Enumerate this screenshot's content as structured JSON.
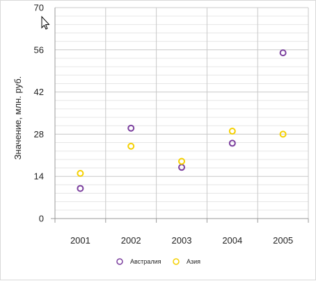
{
  "chart_data": {
    "type": "scatter",
    "title": "",
    "xlabel": "",
    "ylabel": "Значение, млн. руб.",
    "categories": [
      "2001",
      "2002",
      "2003",
      "2004",
      "2005"
    ],
    "ylim": [
      0,
      70
    ],
    "yticks": [
      "0",
      "14",
      "28",
      "42",
      "56",
      "70"
    ],
    "grid": true,
    "legend_position": "bottom-center",
    "series": [
      {
        "name": "Австралия",
        "values": [
          10,
          30,
          17,
          25,
          55
        ],
        "color": "#7b3f9e"
      },
      {
        "name": "Азия",
        "values": [
          15,
          24,
          19,
          29,
          28
        ],
        "color": "#f5d000"
      }
    ],
    "top_tick_color": "#e00000"
  },
  "icons": {
    "cursor": "arrow-cursor-icon"
  }
}
